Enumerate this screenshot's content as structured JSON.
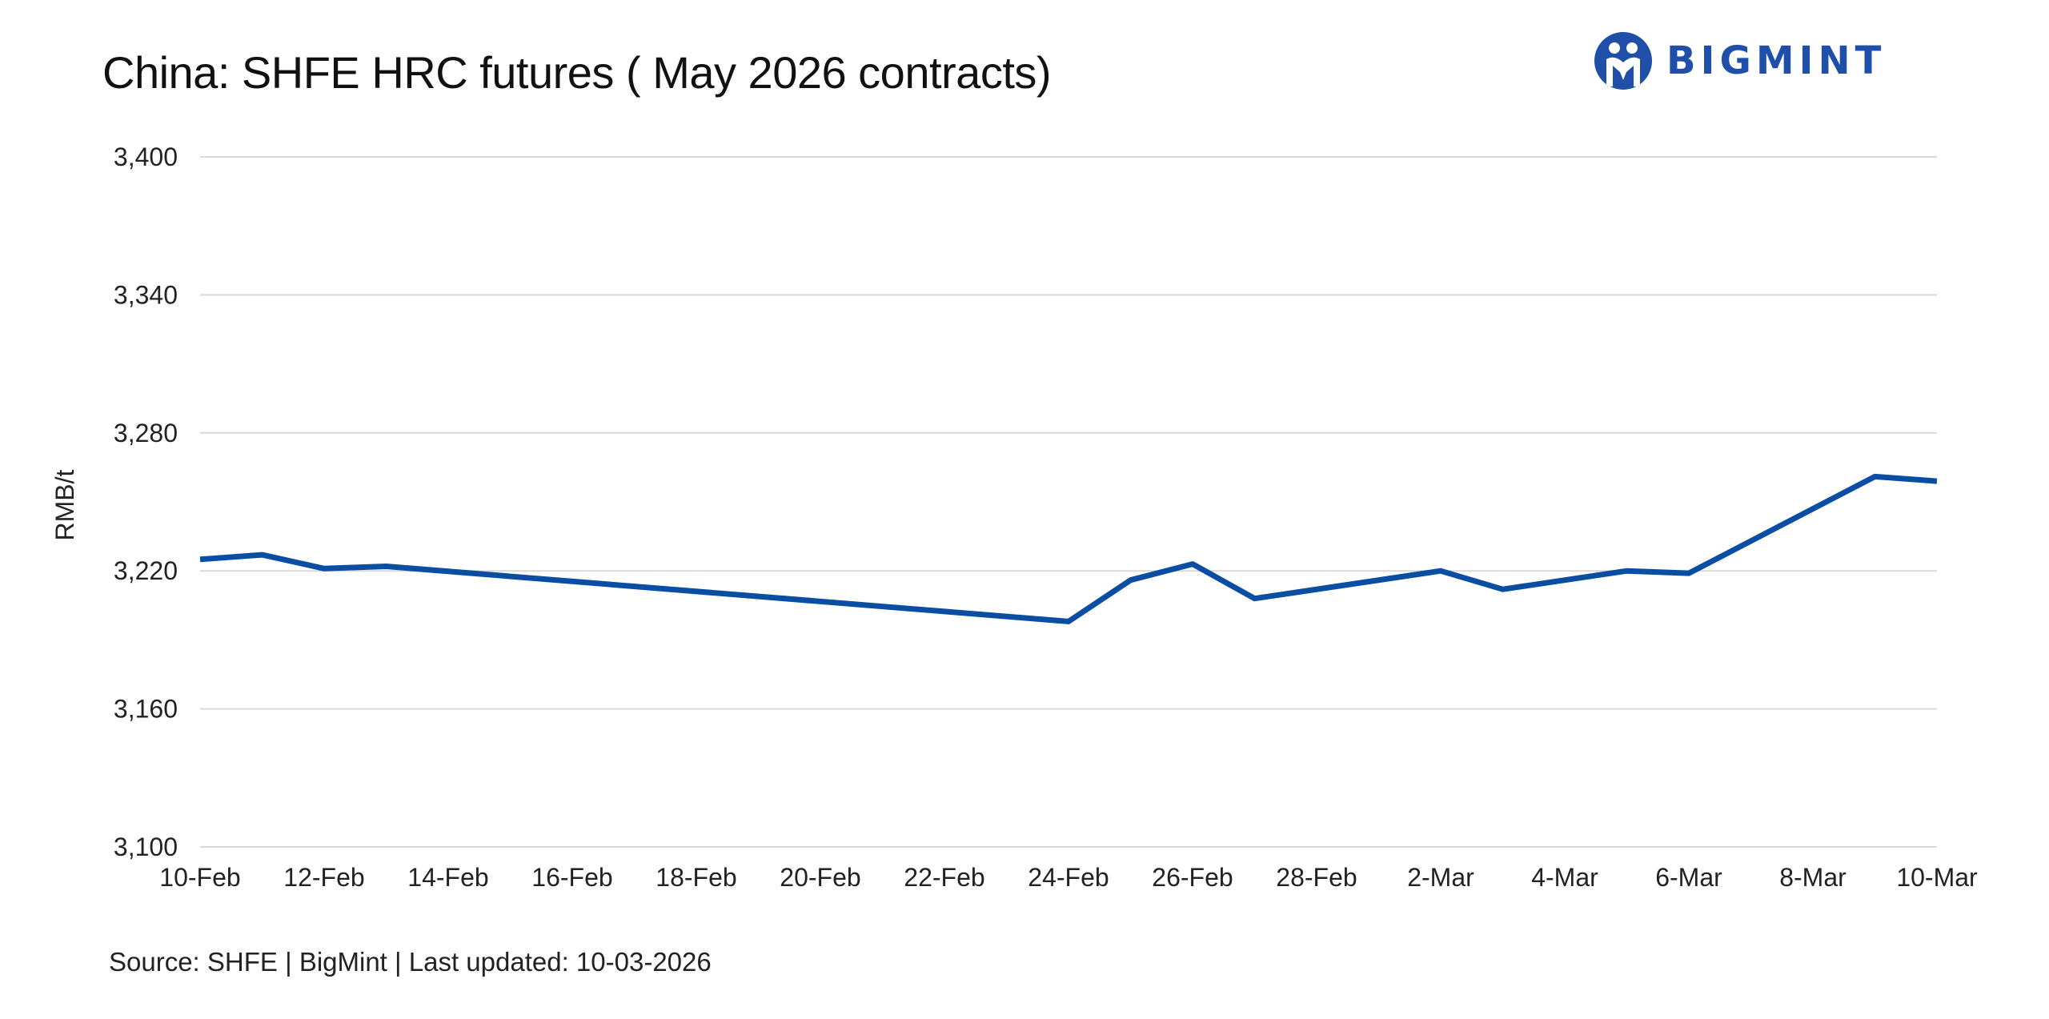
{
  "header": {
    "title": "China: SHFE HRC futures ( May 2026 contracts)",
    "logo_text": "BIGMINT",
    "brand_color": "#1f4fa8"
  },
  "footer": {
    "source": "Source: SHFE | BigMint | Last updated: 10-03-2026"
  },
  "chart_data": {
    "type": "line",
    "title": "China: SHFE HRC futures ( May 2026 contracts)",
    "xlabel": "",
    "ylabel": "RMB/t",
    "ylim": [
      3100,
      3400
    ],
    "xlim": [
      "2026-02-10",
      "2026-03-10"
    ],
    "grid": true,
    "legend": "none",
    "line_color": "#0a4ea3",
    "y_ticks": [
      "3,100",
      "3,160",
      "3,220",
      "3,280",
      "3,340",
      "3,400"
    ],
    "y_tick_values": [
      3100,
      3160,
      3220,
      3280,
      3340,
      3400
    ],
    "x_ticks": [
      "10-Feb",
      "12-Feb",
      "14-Feb",
      "16-Feb",
      "18-Feb",
      "20-Feb",
      "22-Feb",
      "24-Feb",
      "26-Feb",
      "28-Feb",
      "2-Mar",
      "4-Mar",
      "6-Mar",
      "8-Mar",
      "10-Mar"
    ],
    "x_tick_dates": [
      "2026-02-10",
      "2026-02-12",
      "2026-02-14",
      "2026-02-16",
      "2026-02-18",
      "2026-02-20",
      "2026-02-22",
      "2026-02-24",
      "2026-02-26",
      "2026-02-28",
      "2026-03-02",
      "2026-03-04",
      "2026-03-06",
      "2026-03-08",
      "2026-03-10"
    ],
    "series": [
      {
        "x": [
          "2026-02-10",
          "2026-02-11",
          "2026-02-12",
          "2026-02-13",
          "2026-02-24",
          "2026-02-25",
          "2026-02-26",
          "2026-02-27",
          "2026-03-02",
          "2026-03-03",
          "2026-03-04",
          "2026-03-05",
          "2026-03-06",
          "2026-03-09",
          "2026-03-10"
        ],
        "values": [
          3225,
          3227,
          3221,
          3222,
          3198,
          3216,
          3223,
          3208,
          3220,
          3212,
          3216,
          3220,
          3219,
          3261,
          3259
        ]
      }
    ]
  }
}
